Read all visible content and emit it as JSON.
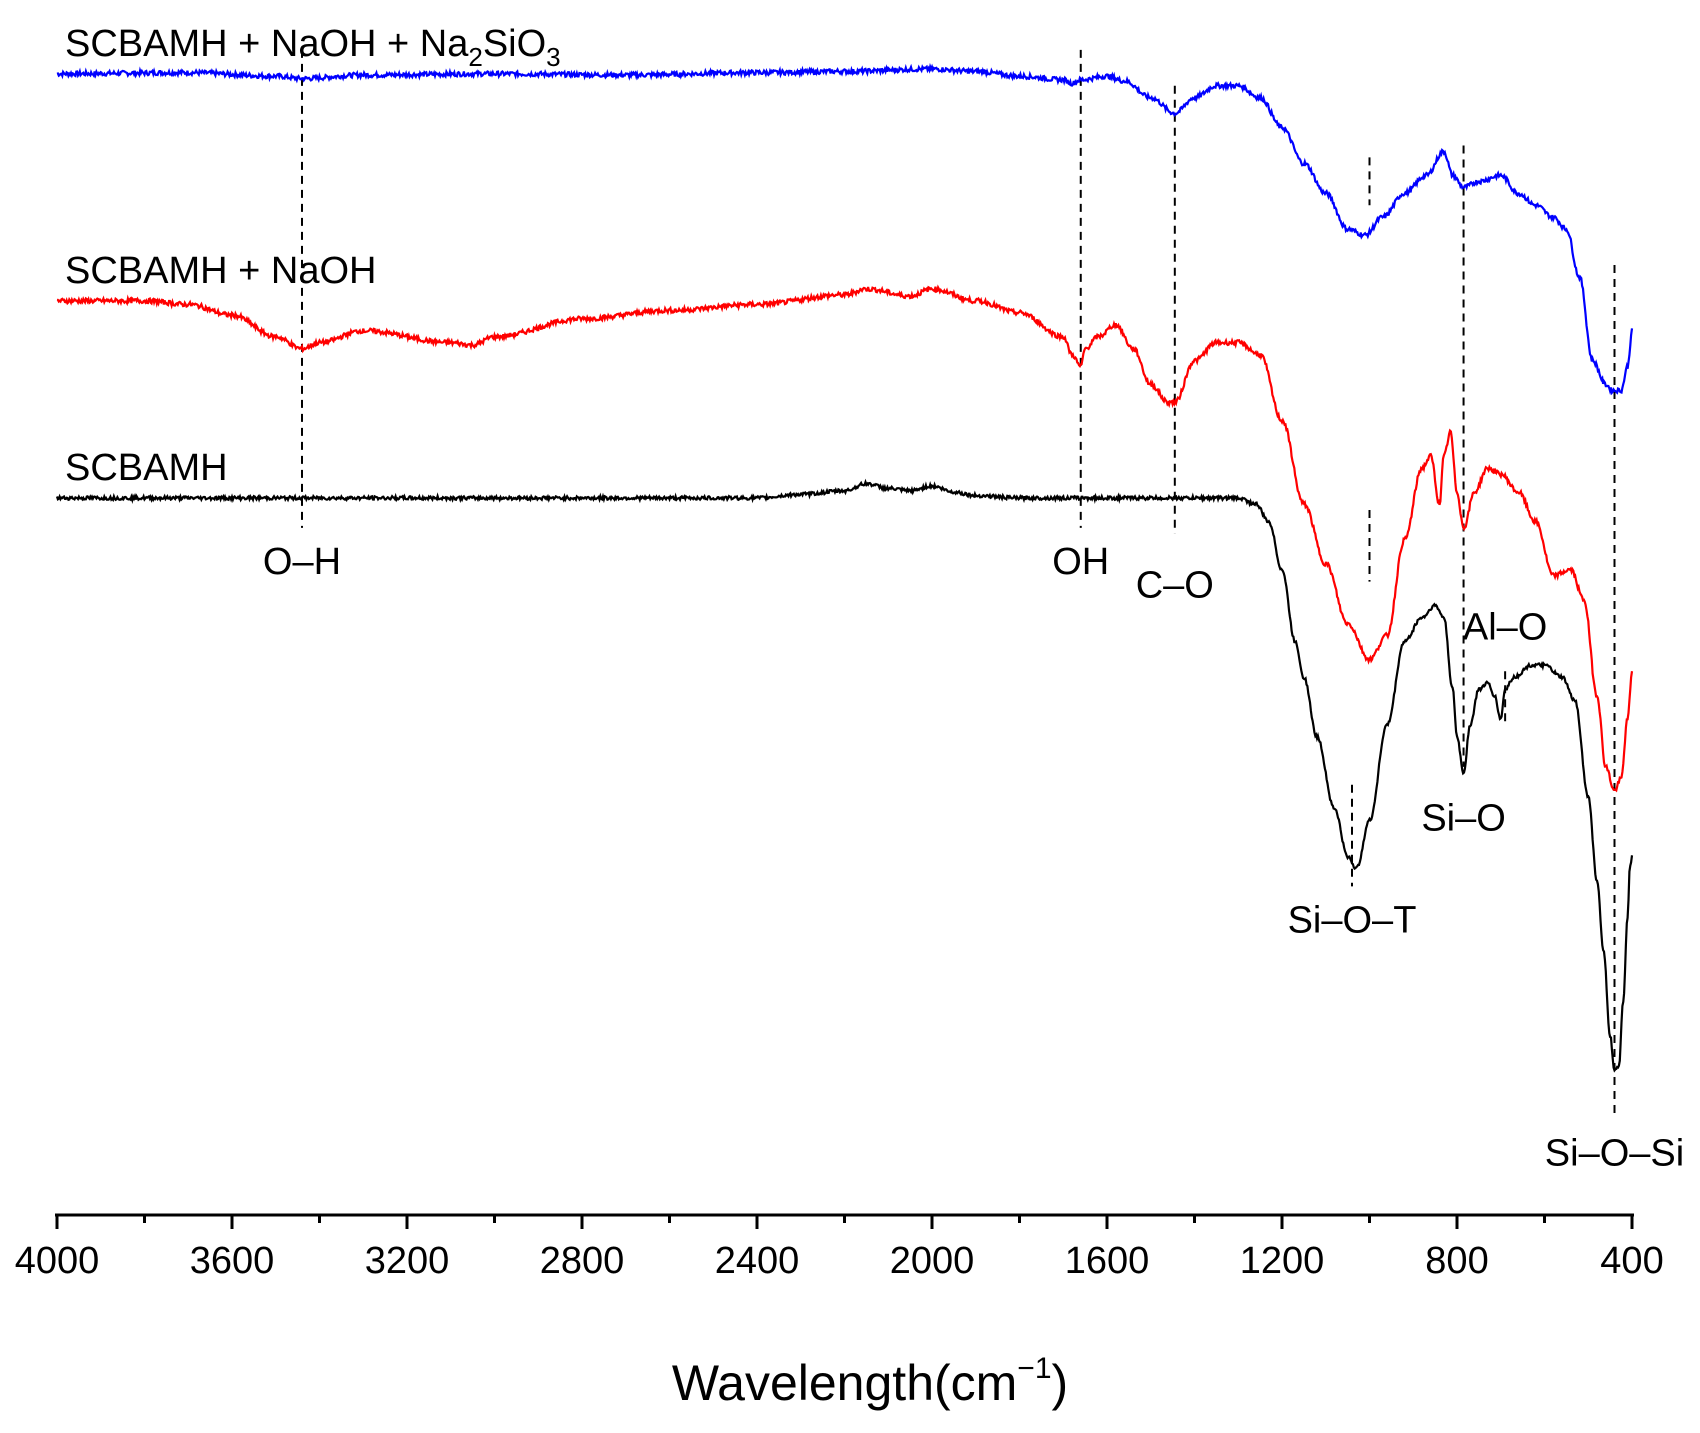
{
  "chart_data": {
    "type": "line",
    "title": "",
    "xlabel": "Wavelength(cm−1)",
    "xlabel_base": "Wavelength(cm",
    "xlabel_sup": "−1",
    "xlabel_close": ")",
    "ylabel": "",
    "xlim": [
      4000,
      400
    ],
    "x_ticks": [
      4000,
      3600,
      3200,
      2800,
      2400,
      2000,
      1600,
      1200,
      800,
      400
    ],
    "x_minor_step": 200,
    "series": [
      {
        "name": "SCBAMH + NaOH + Na2SiO3",
        "label_parts": [
          "SCBAMH + NaOH + Na",
          "2",
          "SiO",
          "3"
        ],
        "color": "#0000ff",
        "offset": 0.955,
        "noise": 0.002,
        "points": [
          [
            4000,
            0
          ],
          [
            3700,
            0.001
          ],
          [
            3500,
            -0.002
          ],
          [
            3440,
            -0.004
          ],
          [
            3300,
            -0.001
          ],
          [
            3000,
            0
          ],
          [
            2700,
            -0.001
          ],
          [
            2400,
            0.001
          ],
          [
            2200,
            0.002
          ],
          [
            2000,
            0.004
          ],
          [
            1900,
            0.002
          ],
          [
            1800,
            -0.002
          ],
          [
            1700,
            -0.005
          ],
          [
            1680,
            -0.008
          ],
          [
            1660,
            -0.005
          ],
          [
            1600,
            -0.002
          ],
          [
            1560,
            -0.006
          ],
          [
            1500,
            -0.02
          ],
          [
            1445,
            -0.033
          ],
          [
            1400,
            -0.02
          ],
          [
            1350,
            -0.01
          ],
          [
            1300,
            -0.01
          ],
          [
            1250,
            -0.02
          ],
          [
            1200,
            -0.045
          ],
          [
            1150,
            -0.075
          ],
          [
            1100,
            -0.1
          ],
          [
            1050,
            -0.13
          ],
          [
            1010,
            -0.135
          ],
          [
            970,
            -0.12
          ],
          [
            920,
            -0.1
          ],
          [
            870,
            -0.085
          ],
          [
            830,
            -0.065
          ],
          [
            810,
            -0.085
          ],
          [
            785,
            -0.095
          ],
          [
            750,
            -0.09
          ],
          [
            700,
            -0.085
          ],
          [
            660,
            -0.1
          ],
          [
            620,
            -0.11
          ],
          [
            580,
            -0.12
          ],
          [
            550,
            -0.13
          ],
          [
            520,
            -0.17
          ],
          [
            490,
            -0.24
          ],
          [
            460,
            -0.26
          ],
          [
            445,
            -0.265
          ],
          [
            425,
            -0.265
          ],
          [
            410,
            -0.245
          ],
          [
            400,
            -0.215
          ]
        ]
      },
      {
        "name": "SCBAMH + NaOH",
        "label_parts": [
          "SCBAMH + NaOH"
        ],
        "color": "#ff0000",
        "offset": 0.765,
        "noise": 0.002,
        "points": [
          [
            4000,
            0
          ],
          [
            3800,
            0
          ],
          [
            3700,
            -0.003
          ],
          [
            3600,
            -0.012
          ],
          [
            3500,
            -0.03
          ],
          [
            3440,
            -0.04
          ],
          [
            3400,
            -0.035
          ],
          [
            3300,
            -0.025
          ],
          [
            3100,
            -0.035
          ],
          [
            3050,
            -0.037
          ],
          [
            3000,
            -0.03
          ],
          [
            2800,
            -0.015
          ],
          [
            2600,
            -0.008
          ],
          [
            2400,
            -0.003
          ],
          [
            2200,
            0.005
          ],
          [
            2150,
            0.01
          ],
          [
            2050,
            0.004
          ],
          [
            2000,
            0.01
          ],
          [
            1900,
            0
          ],
          [
            1800,
            -0.01
          ],
          [
            1700,
            -0.03
          ],
          [
            1680,
            -0.045
          ],
          [
            1660,
            -0.055
          ],
          [
            1650,
            -0.04
          ],
          [
            1620,
            -0.03
          ],
          [
            1580,
            -0.02
          ],
          [
            1540,
            -0.04
          ],
          [
            1500,
            -0.07
          ],
          [
            1460,
            -0.085
          ],
          [
            1445,
            -0.085
          ],
          [
            1400,
            -0.05
          ],
          [
            1350,
            -0.035
          ],
          [
            1300,
            -0.035
          ],
          [
            1250,
            -0.045
          ],
          [
            1200,
            -0.1
          ],
          [
            1150,
            -0.17
          ],
          [
            1100,
            -0.22
          ],
          [
            1050,
            -0.27
          ],
          [
            1000,
            -0.3
          ],
          [
            960,
            -0.28
          ],
          [
            920,
            -0.2
          ],
          [
            880,
            -0.14
          ],
          [
            860,
            -0.13
          ],
          [
            840,
            -0.17
          ],
          [
            830,
            -0.13
          ],
          [
            815,
            -0.11
          ],
          [
            800,
            -0.16
          ],
          [
            785,
            -0.19
          ],
          [
            760,
            -0.16
          ],
          [
            730,
            -0.14
          ],
          [
            700,
            -0.145
          ],
          [
            660,
            -0.16
          ],
          [
            620,
            -0.185
          ],
          [
            580,
            -0.23
          ],
          [
            540,
            -0.225
          ],
          [
            510,
            -0.25
          ],
          [
            480,
            -0.33
          ],
          [
            460,
            -0.39
          ],
          [
            440,
            -0.41
          ],
          [
            425,
            -0.4
          ],
          [
            410,
            -0.35
          ],
          [
            400,
            -0.31
          ]
        ]
      },
      {
        "name": "SCBAMH",
        "label_parts": [
          "SCBAMH"
        ],
        "color": "#000000",
        "offset": 0.6,
        "noise": 0.0015,
        "points": [
          [
            4000,
            0
          ],
          [
            2600,
            0
          ],
          [
            2400,
            0
          ],
          [
            2300,
            0.003
          ],
          [
            2200,
            0.006
          ],
          [
            2150,
            0.012
          ],
          [
            2100,
            0.008
          ],
          [
            2050,
            0.006
          ],
          [
            2000,
            0.01
          ],
          [
            1950,
            0.005
          ],
          [
            1900,
            0.002
          ],
          [
            1800,
            0
          ],
          [
            1300,
            0
          ],
          [
            1260,
            -0.005
          ],
          [
            1230,
            -0.02
          ],
          [
            1200,
            -0.06
          ],
          [
            1170,
            -0.12
          ],
          [
            1150,
            -0.15
          ],
          [
            1120,
            -0.2
          ],
          [
            1080,
            -0.26
          ],
          [
            1050,
            -0.3
          ],
          [
            1030,
            -0.31
          ],
          [
            1000,
            -0.27
          ],
          [
            960,
            -0.19
          ],
          [
            920,
            -0.12
          ],
          [
            880,
            -0.1
          ],
          [
            850,
            -0.09
          ],
          [
            830,
            -0.1
          ],
          [
            810,
            -0.16
          ],
          [
            800,
            -0.2
          ],
          [
            785,
            -0.23
          ],
          [
            770,
            -0.19
          ],
          [
            750,
            -0.16
          ],
          [
            730,
            -0.155
          ],
          [
            715,
            -0.165
          ],
          [
            700,
            -0.185
          ],
          [
            690,
            -0.16
          ],
          [
            670,
            -0.15
          ],
          [
            630,
            -0.14
          ],
          [
            600,
            -0.14
          ],
          [
            560,
            -0.15
          ],
          [
            530,
            -0.17
          ],
          [
            500,
            -0.25
          ],
          [
            480,
            -0.32
          ],
          [
            465,
            -0.38
          ],
          [
            450,
            -0.45
          ],
          [
            440,
            -0.48
          ],
          [
            430,
            -0.475
          ],
          [
            420,
            -0.42
          ],
          [
            410,
            -0.35
          ],
          [
            405,
            -0.31
          ],
          [
            400,
            -0.3
          ]
        ]
      }
    ],
    "peak_annotations": [
      {
        "label": "O–H",
        "x": 3440,
        "y_top": 0.975,
        "y_bottom": 0.575,
        "label_y": 0.545
      },
      {
        "label": "OH",
        "x": 1660,
        "y_top": 0.975,
        "y_bottom": 0.575,
        "label_y": 0.545
      },
      {
        "label": "C–O",
        "x": 1445,
        "y_top": 0.945,
        "y_bottom": 0.57,
        "label_y": 0.525
      },
      {
        "label": "Si–O–T",
        "x": 1000,
        "y_top": 0.885,
        "y_bottom": 0.845,
        "label_y": null
      },
      {
        "label": "Si–O–T",
        "x": 1000,
        "y_top": 0.59,
        "y_bottom": 0.53,
        "label_y": null
      },
      {
        "label": "Si–O–T",
        "x": 1040,
        "y_top": 0.36,
        "y_bottom": 0.275,
        "label_y": 0.245
      },
      {
        "label": "Si–O",
        "x": 785,
        "y_top": 0.895,
        "y_bottom": 0.375,
        "label_y": 0.33
      },
      {
        "label": "Al–O",
        "x": 690,
        "y_top": 0.455,
        "y_bottom": 0.41,
        "label_y": 0.49
      },
      {
        "label": "Si–O–Si",
        "x": 440,
        "y_top": 0.795,
        "y_bottom": 0.085,
        "label_y": 0.05
      }
    ]
  }
}
